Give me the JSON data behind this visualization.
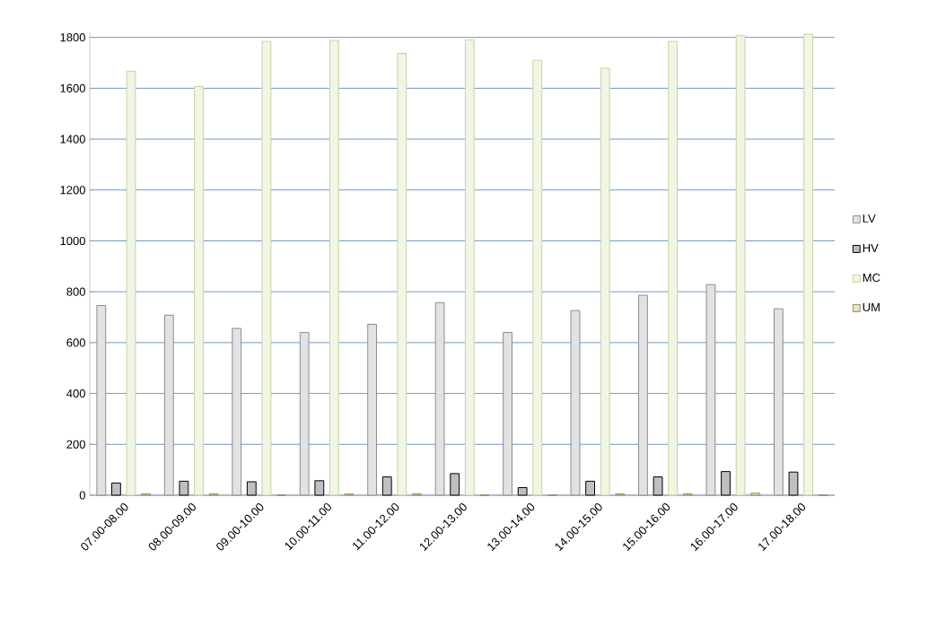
{
  "chart_data": {
    "type": "bar",
    "categories": [
      "07.00-08.00",
      "08.00-09.00",
      "09.00-10.00",
      "10.00-11.00",
      "11.00-12.00",
      "12.00-13.00",
      "13.00-14.00",
      "14.00-15.00",
      "15.00-16.00",
      "16.00-17.00",
      "17.00-18.00"
    ],
    "series": [
      {
        "name": "LV",
        "color": "#8c8c8c",
        "values": [
          746,
          708,
          656,
          640,
          672,
          757,
          640,
          726,
          786,
          828,
          733
        ]
      },
      {
        "name": "HV",
        "color": "#000000",
        "values": [
          48,
          55,
          53,
          57,
          72,
          85,
          30,
          55,
          72,
          93,
          91
        ]
      },
      {
        "name": "MC",
        "color": "#c3d69b",
        "values": [
          1667,
          1607,
          1784,
          1788,
          1737,
          1790,
          1710,
          1679,
          1784,
          1807,
          1813
        ]
      },
      {
        "name": "UM",
        "color": "#948a54",
        "values": [
          5,
          5,
          0,
          5,
          5,
          0,
          0,
          5,
          5,
          8,
          0
        ]
      }
    ],
    "ylim": [
      0,
      1820
    ],
    "yticks": [
      0,
      200,
      400,
      600,
      800,
      1000,
      1200,
      1400,
      1600,
      1800
    ],
    "grid": "y",
    "legend": "right"
  }
}
